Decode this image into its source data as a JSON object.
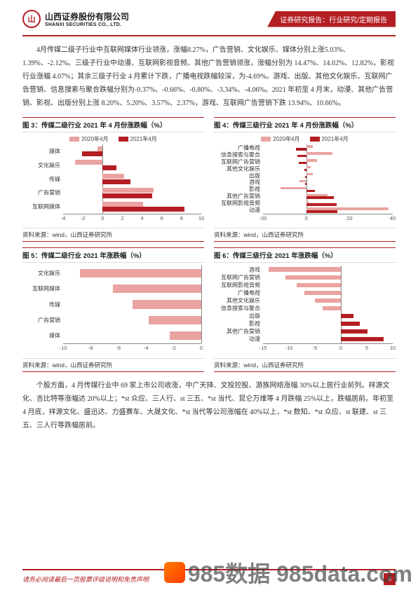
{
  "colors": {
    "accent": "#b31e23",
    "y2020": "#e9a3a0",
    "y2021": "#b31e23",
    "pos": "#b31e23",
    "neg": "#e9a3a0"
  },
  "brand": {
    "cn": "山西证券股份有限公司",
    "en": "SHANXI SECURITIES CO., LTD."
  },
  "header_right": "证券研究报告：行业研究/定期报告",
  "para1": "4月传媒二级子行业中互联网媒体行业领涨，涨幅8.27%，广告营销、文化娱乐、媒体分别上涨5.03%、1.39%、-2.12%。三级子行业中动漫、互联网影视音频、其他广告营销领涨，涨幅分别为 14.47%、14.02%、12.82%，影视行业涨幅 4.07%；其余三级子行业 4 月累计下跌，广播电视跌幅较深，为-4.69%。游戏、出版、其他文化娱乐、互联网广告营销、信息搜索与聚合跌幅分别为-0.37%、-0.66%、-0.80%、-3.34%、-4.06%。2021 年初至 4 月末，动漫、其他广告营销、影视、出版分别上涨 8.20%、5.20%、3.57%、2.37%，游戏、互联网广告营销下跌 13.94%、10.66%。",
  "para2": "个股方面，4 月传媒行业中 69 家上市公司收涨，中广天择、文投控股、游族网络涨幅 30%以上居行业前列。祥源文化、吉比特等涨幅达 20%以上；*st 众应、三人行、st 三五、*st 当代、昆仑万维等 4 月跌幅 25%以上，跌幅居前。年初至 4 月底，祥源文化、盛迅达、力盛赛车、大晟文化、*st 当代等公司涨幅在 40%以上，*st 数知、*st 众应、st 联建、st 三五、三人行等跌幅居前。",
  "charts": [
    {
      "title": "图 3：传媒二级行业 2021 年 4 月份涨跌幅（%）",
      "legend": [
        "2020年4月",
        "2021年4月"
      ],
      "xmin": -4,
      "xmax": 10,
      "xticks": [
        -4,
        -2,
        0,
        2,
        4,
        6,
        8,
        10
      ],
      "categories": [
        "媒体",
        "文化娱乐",
        "传媒",
        "广告营销",
        "互联网媒体"
      ],
      "series": [
        {
          "key": "2020年4月",
          "color": "#e9a3a0",
          "values": [
            -0.5,
            -2.8,
            2.2,
            5.2,
            4.1
          ]
        },
        {
          "key": "2021年4月",
          "color": "#b31e23",
          "values": [
            -2.1,
            1.4,
            2.8,
            5.0,
            8.3
          ]
        }
      ]
    },
    {
      "title": "图 4：传媒三级行业 2021 年 4 月份涨跌幅（%）",
      "legend": [
        "2020年4月",
        "2021年4月"
      ],
      "xmin": -20,
      "xmax": 40,
      "xticks": [
        -20,
        0,
        20,
        40
      ],
      "categories": [
        "广播电视",
        "信息搜索与聚合",
        "互联网广告营销",
        "其他文化娱乐",
        "出版",
        "游戏",
        "影视",
        "其他广告营销",
        "互联网影视音频",
        "动漫"
      ],
      "series": [
        {
          "key": "2020年4月",
          "color": "#e9a3a0",
          "values": [
            3,
            12,
            5,
            2,
            3,
            -3,
            -12,
            10,
            1,
            38
          ]
        },
        {
          "key": "2021年4月",
          "color": "#b31e23",
          "values": [
            -4.7,
            -4.1,
            -3.3,
            -0.8,
            -0.7,
            -0.4,
            4.1,
            12.8,
            14.0,
            14.5
          ]
        }
      ]
    },
    {
      "title": "图 5：传媒二级行业 2021 年涨跌幅（%）",
      "legend": null,
      "xmin": -10,
      "xmax": 0,
      "xticks": [
        -10,
        -8,
        -6,
        -4,
        -2,
        0
      ],
      "categories": [
        "文化娱乐",
        "互联网媒体",
        "传媒",
        "广告营销",
        "媒体"
      ],
      "series": [
        {
          "key": "ytd",
          "color": "single",
          "values": [
            -8.8,
            -6.4,
            -5.0,
            -3.8,
            -2.3
          ]
        }
      ]
    },
    {
      "title": "图 6：传媒三级行业 2021 年涨跌幅（%）",
      "legend": null,
      "xmin": -15,
      "xmax": 10,
      "xticks": [
        -15,
        -10,
        -5,
        0,
        5,
        10
      ],
      "categories": [
        "游戏",
        "互联网广告营销",
        "互联网影视音频",
        "广播电视",
        "其他文化娱乐",
        "信息搜索与聚合",
        "出版",
        "影视",
        "其他广告营销",
        "动漫"
      ],
      "series": [
        {
          "key": "ytd",
          "color": "single",
          "values": [
            -13.9,
            -10.7,
            -8.5,
            -7.0,
            -5.0,
            -3.5,
            2.4,
            3.6,
            5.2,
            8.2
          ]
        }
      ]
    }
  ],
  "source": "资料来源：wind，山西证券研究所",
  "footer_left": "请务必阅读最后一页股票评级说明和免责声明",
  "page_num": "6",
  "watermark": "985数据  985data.com"
}
